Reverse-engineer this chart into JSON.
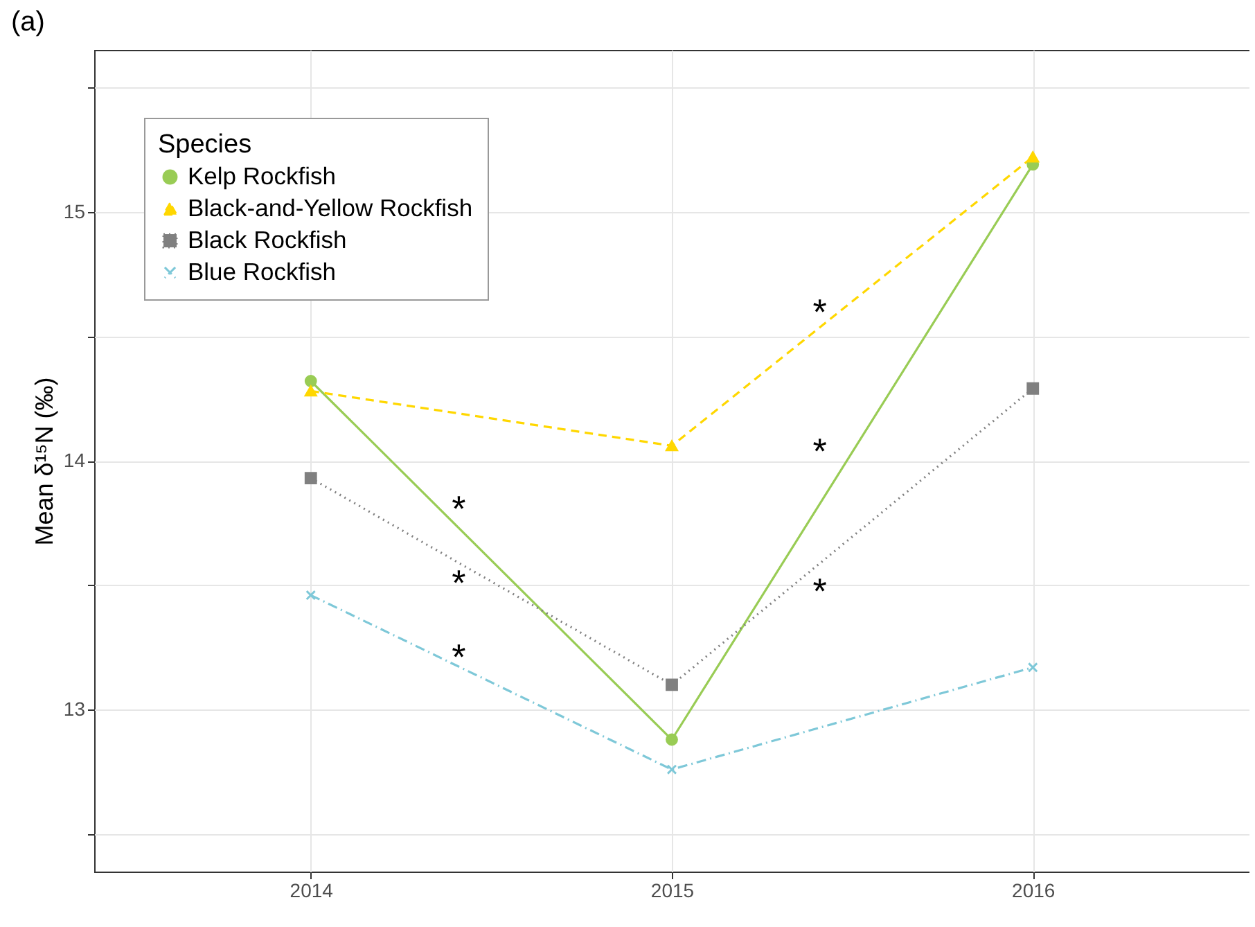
{
  "chart_data": {
    "type": "line",
    "title": "(a)",
    "ylabel": "Mean δ¹⁵N (‰)",
    "legend_title": "Species",
    "x": [
      2014,
      2015,
      2016
    ],
    "xlim": [
      2013.4,
      2016.6
    ],
    "xticks": [
      2014,
      2015,
      2016
    ],
    "ylim": [
      12.35,
      15.65
    ],
    "yticks": [
      {
        "value": 12.5,
        "label": null
      },
      13,
      {
        "value": 13.5,
        "label": null
      },
      14,
      {
        "value": 14.5,
        "label": null
      },
      15,
      {
        "value": 15.5,
        "label": null
      }
    ],
    "grid": true,
    "legend": "top left",
    "series": [
      {
        "name": "Kelp Rockfish",
        "color": "#99cc55",
        "marker": "circle",
        "line_style": "solid",
        "values": [
          14.32,
          12.88,
          15.19
        ]
      },
      {
        "name": "Black-and-Yellow Rockfish",
        "color": "#ffd700",
        "marker": "triangle",
        "line_style": "dashed",
        "values": [
          14.28,
          14.06,
          15.22
        ]
      },
      {
        "name": "Black Rockfish",
        "color": "#808080",
        "marker": "square",
        "line_style": "dotted",
        "values": [
          13.93,
          13.1,
          14.29
        ]
      },
      {
        "name": "Blue Rockfish",
        "color": "#7ec8d8",
        "marker": "cross",
        "line_style": "dashdot",
        "values": [
          13.46,
          12.76,
          13.17
        ]
      }
    ],
    "annotations": [
      "*",
      "*",
      "*",
      "*",
      "*",
      "*"
    ]
  }
}
